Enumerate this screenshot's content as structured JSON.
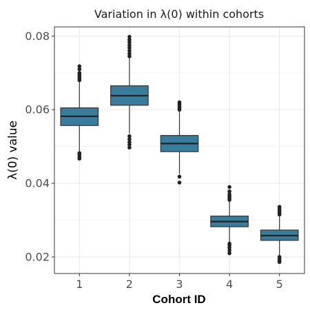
{
  "chart_data": {
    "type": "boxplot",
    "title": "Variation in  λ(0)  within cohorts",
    "xlabel": "Cohort ID",
    "ylabel": "λ(0) value",
    "categories": [
      "1",
      "2",
      "3",
      "4",
      "5"
    ],
    "ylim": [
      0.0155,
      0.0825
    ],
    "yticks": [
      0.02,
      0.04,
      0.06,
      0.08
    ],
    "ytick_labels": [
      "0.02",
      "0.04",
      "0.06",
      "0.08"
    ],
    "grid": true,
    "fill_color": "#3a7c9b",
    "boxes": [
      {
        "category": "1",
        "q1": 0.0557,
        "median": 0.0582,
        "q3": 0.0605,
        "whisker_low": 0.0485,
        "whisker_high": 0.0675,
        "outliers": [
          0.0467,
          0.0472,
          0.0478,
          0.0482,
          0.068,
          0.0685,
          0.069,
          0.0695,
          0.07,
          0.071,
          0.0718
        ]
      },
      {
        "category": "2",
        "q1": 0.0612,
        "median": 0.0638,
        "q3": 0.0665,
        "whisker_low": 0.0535,
        "whisker_high": 0.074,
        "outliers": [
          0.0497,
          0.0505,
          0.0512,
          0.052,
          0.0528,
          0.0745,
          0.0752,
          0.076,
          0.0768,
          0.0775,
          0.0783,
          0.079,
          0.0798
        ]
      },
      {
        "category": "3",
        "q1": 0.0486,
        "median": 0.0508,
        "q3": 0.053,
        "whisker_low": 0.0425,
        "whisker_high": 0.0595,
        "outliers": [
          0.0402,
          0.0418,
          0.06,
          0.0605,
          0.061,
          0.0615,
          0.062
        ]
      },
      {
        "category": "4",
        "q1": 0.0282,
        "median": 0.0296,
        "q3": 0.0311,
        "whisker_low": 0.024,
        "whisker_high": 0.0352,
        "outliers": [
          0.021,
          0.0218,
          0.0225,
          0.0232,
          0.0236,
          0.0355,
          0.036,
          0.0365,
          0.037,
          0.0378,
          0.039
        ]
      },
      {
        "category": "5",
        "q1": 0.0245,
        "median": 0.0258,
        "q3": 0.0273,
        "whisker_low": 0.0205,
        "whisker_high": 0.0312,
        "outliers": [
          0.0186,
          0.019,
          0.0195,
          0.02,
          0.0315,
          0.032,
          0.0325,
          0.033,
          0.0336
        ]
      }
    ]
  }
}
